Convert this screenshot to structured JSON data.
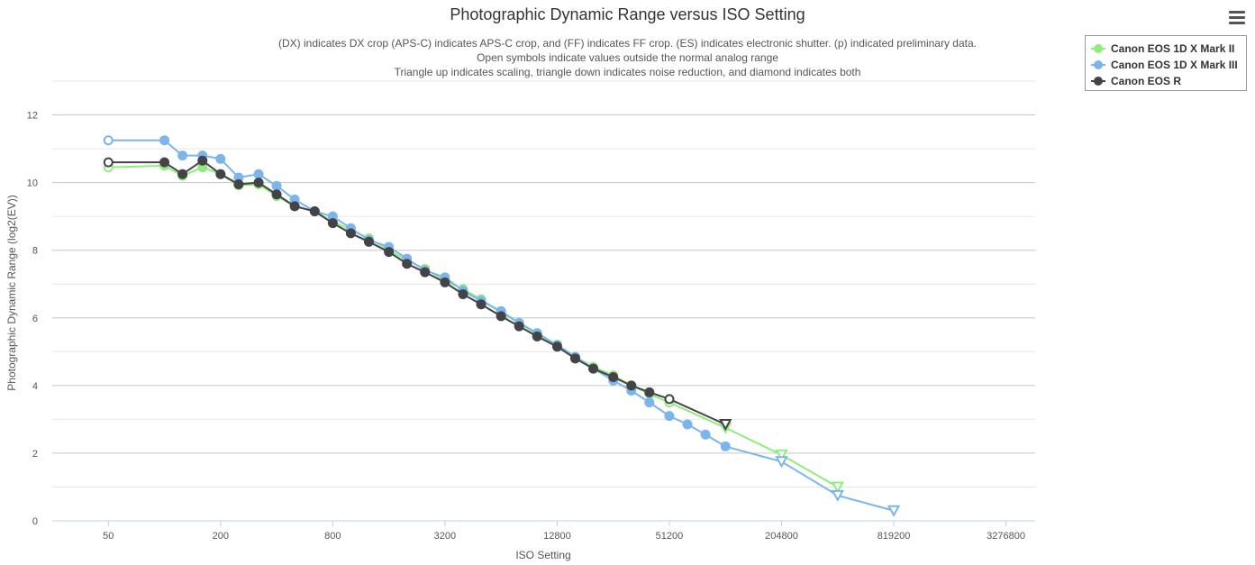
{
  "chart": {
    "title": "Photographic Dynamic Range versus ISO Setting",
    "subtitles": [
      "(DX) indicates DX crop (APS-C) indicates APS-C crop, and (FF) indicates FF crop. (ES) indicates electronic shutter. (p) indicated preliminary data.",
      "Open symbols indicate values outside the normal analog range",
      "Triangle up indicates scaling, triangle down indicates noise reduction, and diamond indicates both"
    ],
    "menu_icon": "hamburger-menu-icon"
  },
  "chart_data": {
    "type": "line",
    "title": "Photographic Dynamic Range versus ISO Setting",
    "xlabel": "ISO Setting",
    "ylabel": "Photographic Dynamic Range (log2(EV))",
    "x_scale": "log2",
    "xlim": [
      25,
      4700000
    ],
    "ylim": [
      0,
      13
    ],
    "x_ticks": [
      50,
      200,
      800,
      3200,
      12800,
      51200,
      204800,
      819200,
      3276800
    ],
    "x_tick_labels": [
      "50",
      "200",
      "800",
      "3200",
      "12800",
      "51200",
      "204800",
      "819200",
      "3276800"
    ],
    "y_ticks": [
      0,
      2,
      4,
      6,
      8,
      10,
      12
    ],
    "y_tick_labels": [
      "0",
      "2",
      "4",
      "6",
      "8",
      "10",
      "12"
    ],
    "grid": true,
    "legend_position": "top-right",
    "series": [
      {
        "name": "Canon EOS 1D X Mark II",
        "color": "#90ed7d",
        "x": [
          50,
          100,
          125,
          160,
          200,
          250,
          320,
          400,
          500,
          640,
          800,
          1000,
          1250,
          1600,
          2000,
          2500,
          3200,
          4000,
          5000,
          6400,
          8000,
          10000,
          12800,
          16000,
          20000,
          25600,
          32000,
          40000,
          51200,
          102400,
          204800,
          409600
        ],
        "y": [
          10.45,
          10.5,
          10.2,
          10.45,
          10.25,
          9.92,
          9.95,
          9.6,
          9.3,
          9.15,
          8.85,
          8.6,
          8.35,
          8.0,
          7.7,
          7.45,
          7.1,
          6.85,
          6.55,
          6.15,
          5.85,
          5.5,
          5.2,
          4.85,
          4.55,
          4.3,
          4.0,
          3.75,
          3.5,
          2.75,
          1.95,
          1.0
        ],
        "marker": [
          "open-circle",
          "circle",
          "circle",
          "circle",
          "circle",
          "circle",
          "circle",
          "circle",
          "circle",
          "circle",
          "circle",
          "circle",
          "circle",
          "circle",
          "circle",
          "circle",
          "circle",
          "circle",
          "circle",
          "circle",
          "circle",
          "circle",
          "circle",
          "circle",
          "circle",
          "circle",
          "circle",
          "circle",
          "open-circle",
          "open-triangle-down",
          "open-triangle-down",
          "open-triangle-down"
        ]
      },
      {
        "name": "Canon EOS 1D X Mark III",
        "color": "#7cb5ec",
        "x": [
          50,
          100,
          125,
          160,
          200,
          250,
          320,
          400,
          500,
          640,
          800,
          1000,
          1250,
          1600,
          2000,
          2500,
          3200,
          4000,
          5000,
          6400,
          8000,
          10000,
          12800,
          16000,
          20000,
          25600,
          32000,
          40000,
          51200,
          64000,
          80000,
          102400,
          204800,
          409600,
          819200
        ],
        "y": [
          11.25,
          11.25,
          10.8,
          10.8,
          10.7,
          10.15,
          10.25,
          9.9,
          9.5,
          9.15,
          9.0,
          8.65,
          8.3,
          8.1,
          7.75,
          7.4,
          7.2,
          6.8,
          6.5,
          6.2,
          5.85,
          5.55,
          5.2,
          4.85,
          4.5,
          4.15,
          3.85,
          3.5,
          3.1,
          2.85,
          2.55,
          2.2,
          1.75,
          0.75,
          0.3
        ],
        "marker": [
          "open-circle",
          "circle",
          "circle",
          "circle",
          "circle",
          "circle",
          "circle",
          "circle",
          "circle",
          "circle",
          "circle",
          "circle",
          "circle",
          "circle",
          "circle",
          "circle",
          "circle",
          "circle",
          "circle",
          "circle",
          "circle",
          "circle",
          "circle",
          "circle",
          "circle",
          "circle",
          "circle",
          "circle",
          "circle",
          "circle",
          "circle",
          "circle",
          "open-triangle-down",
          "open-triangle-down",
          "open-triangle-down"
        ]
      },
      {
        "name": "Canon EOS R",
        "color": "#434348",
        "x": [
          50,
          100,
          125,
          160,
          200,
          250,
          320,
          400,
          500,
          640,
          800,
          1000,
          1250,
          1600,
          2000,
          2500,
          3200,
          4000,
          5000,
          6400,
          8000,
          10000,
          12800,
          16000,
          20000,
          25600,
          32000,
          40000,
          51200,
          102400
        ],
        "y": [
          10.6,
          10.6,
          10.25,
          10.65,
          10.25,
          9.95,
          10.0,
          9.65,
          9.3,
          9.15,
          8.8,
          8.5,
          8.25,
          7.95,
          7.6,
          7.35,
          7.05,
          6.7,
          6.4,
          6.05,
          5.75,
          5.45,
          5.15,
          4.8,
          4.5,
          4.25,
          4.0,
          3.8,
          3.6,
          2.85
        ],
        "marker": [
          "open-circle",
          "circle",
          "circle",
          "circle",
          "circle",
          "circle",
          "circle",
          "circle",
          "circle",
          "circle",
          "circle",
          "circle",
          "circle",
          "circle",
          "circle",
          "circle",
          "circle",
          "circle",
          "circle",
          "circle",
          "circle",
          "circle",
          "circle",
          "circle",
          "circle",
          "circle",
          "circle",
          "circle",
          "open-circle",
          "open-triangle-down"
        ]
      }
    ]
  }
}
